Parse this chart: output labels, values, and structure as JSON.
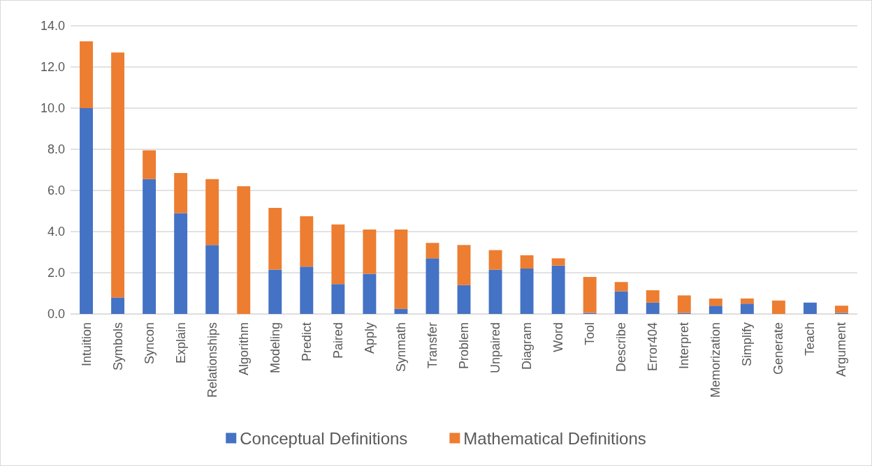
{
  "chart_data": {
    "type": "bar",
    "stacked": true,
    "categories": [
      "Intuition",
      "Symbols",
      "Syncon",
      "Explain",
      "Relationships",
      "Algorithm",
      "Modeling",
      "Predict",
      "Paired",
      "Apply",
      "Synmath",
      "Transfer",
      "Problem",
      "Unpaired",
      "Diagram",
      "Word",
      "Tool",
      "Describe",
      "Error404",
      "Interpret",
      "Memorization",
      "Simplify",
      "Generate",
      "Teach",
      "Argument"
    ],
    "series": [
      {
        "name": "Conceptual Definitions",
        "color": "#4472c4",
        "values": [
          10.0,
          0.8,
          6.55,
          4.9,
          3.35,
          0,
          2.15,
          2.3,
          1.45,
          1.95,
          0.25,
          2.7,
          1.4,
          2.15,
          2.2,
          2.35,
          0.05,
          1.1,
          0.55,
          0.05,
          0.4,
          0.5,
          0,
          0.55,
          0.05
        ]
      },
      {
        "name": "Mathematical Definitions",
        "color": "#ed7d31",
        "values": [
          3.25,
          11.9,
          1.4,
          1.95,
          3.2,
          6.2,
          3.0,
          2.45,
          2.9,
          2.15,
          3.85,
          0.75,
          1.95,
          0.95,
          0.65,
          0.35,
          1.75,
          0.45,
          0.6,
          0.85,
          0.35,
          0.25,
          0.65,
          0,
          0.35
        ]
      }
    ],
    "ylim": [
      0,
      14
    ],
    "yticks": [
      {
        "value": 0,
        "label": "0.0"
      },
      {
        "value": 2,
        "label": "2.0"
      },
      {
        "value": 4,
        "label": "4.0"
      },
      {
        "value": 6,
        "label": "6.0"
      },
      {
        "value": 8,
        "label": "8.0"
      },
      {
        "value": 10,
        "label": "10.0"
      },
      {
        "value": 12,
        "label": "12.0"
      },
      {
        "value": 14,
        "label": "14.0"
      }
    ],
    "grid": "y",
    "legend": "bottom"
  }
}
